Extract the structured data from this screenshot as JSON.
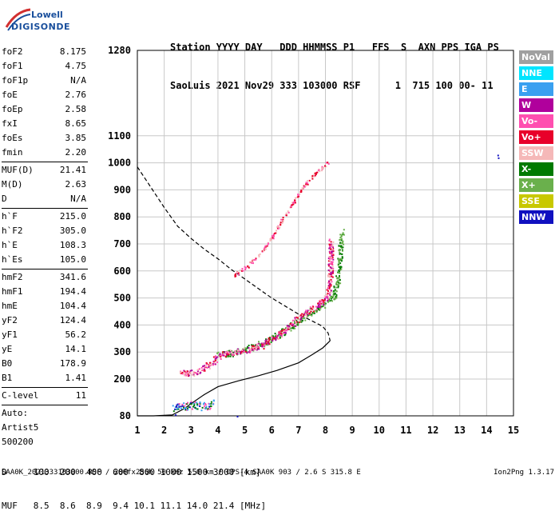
{
  "header": {
    "line1": "Station YYYY DAY   DDD HHMMSS P1   FFS  S  AXN PPS IGA PS",
    "line2": "SaoLuis 2021 Nov29 333 103000 RSF      1  715 100 00- 11"
  },
  "logo": {
    "line1": "Lowell",
    "line2": "DIGISONDE"
  },
  "params": [
    {
      "label": "foF2",
      "value": "8.175"
    },
    {
      "label": "foF1",
      "value": "4.75"
    },
    {
      "label": "foF1p",
      "value": "N/A"
    },
    {
      "label": "foE",
      "value": "2.76"
    },
    {
      "label": "foEp",
      "value": "2.58"
    },
    {
      "label": "fxI",
      "value": "8.65"
    },
    {
      "label": "foEs",
      "value": "3.85"
    },
    {
      "label": "fmin",
      "value": "2.20"
    },
    {
      "sep": true
    },
    {
      "label": "MUF(D)",
      "value": "21.41"
    },
    {
      "label": "M(D)",
      "value": "2.63"
    },
    {
      "label": "D",
      "value": "N/A"
    },
    {
      "sep": true
    },
    {
      "label": "h`F",
      "value": "215.0"
    },
    {
      "label": "h`F2",
      "value": "305.0"
    },
    {
      "label": "h`E",
      "value": "108.3"
    },
    {
      "label": "h`Es",
      "value": "105.0"
    },
    {
      "sep": true
    },
    {
      "label": "hmF2",
      "value": "341.6"
    },
    {
      "label": "hmF1",
      "value": "194.4"
    },
    {
      "label": "hmE",
      "value": "104.4"
    },
    {
      "label": "yF2",
      "value": "124.4"
    },
    {
      "label": "yF1",
      "value": "56.2"
    },
    {
      "label": "yE",
      "value": "14.1"
    },
    {
      "label": "B0",
      "value": "178.9"
    },
    {
      "label": "B1",
      "value": "1.41"
    },
    {
      "sep": true
    },
    {
      "label": "C-level",
      "value": "11"
    },
    {
      "sep": true
    },
    {
      "text": "Auto:"
    },
    {
      "text": "Artist5"
    },
    {
      "text": "500200"
    }
  ],
  "legend": [
    {
      "label": "NoVal",
      "color": "#a0a0a0"
    },
    {
      "label": "NNE",
      "color": "#00e5ff"
    },
    {
      "label": "E",
      "color": "#3aa0f0"
    },
    {
      "label": "W",
      "color": "#b0009c"
    },
    {
      "label": "Vo-",
      "color": "#ff4fb0"
    },
    {
      "label": "Vo+",
      "color": "#e8002a"
    },
    {
      "label": "SSW",
      "color": "#f5b8b8"
    },
    {
      "label": "X-",
      "color": "#007a00"
    },
    {
      "label": "X+",
      "color": "#6ab04c"
    },
    {
      "label": "SSE",
      "color": "#c8c800"
    },
    {
      "label": "NNW",
      "color": "#1010c0"
    }
  ],
  "footer": {
    "line1": "D     100  200  400  600  800 1000 1500 3000 [km]",
    "line2": "MUF   8.5  8.6  8.9  9.4 10.1 11.1 14.0 21.4 [MHz]",
    "bottom": "SAA0K_2021333103000.RSF / 280fx256h 50 kHz 5.0 km / DPS-4 SAA0K 903 / 2.6 S 315.8 E",
    "version": "Ion2Png 1.3.17"
  },
  "chart_data": {
    "type": "scatter",
    "xlim": [
      1,
      15
    ],
    "ylim": [
      80,
      1280
    ],
    "xticks": [
      1,
      2,
      3,
      4,
      5,
      6,
      7,
      8,
      9,
      10,
      11,
      12,
      13,
      14,
      15
    ],
    "yticks": [
      80,
      200,
      300,
      400,
      500,
      600,
      700,
      800,
      900,
      1000,
      1100,
      1280
    ],
    "grid": true,
    "traces": {
      "o_trace": [
        [
          2.55,
          230
        ],
        [
          2.8,
          222
        ],
        [
          3.1,
          225
        ],
        [
          3.4,
          235
        ],
        [
          3.7,
          258
        ],
        [
          3.9,
          275
        ],
        [
          4.1,
          290
        ],
        [
          4.4,
          298
        ],
        [
          4.8,
          305
        ],
        [
          5.2,
          312
        ],
        [
          5.6,
          325
        ],
        [
          5.9,
          345
        ],
        [
          6.3,
          370
        ],
        [
          6.7,
          400
        ],
        [
          7.0,
          430
        ],
        [
          7.3,
          450
        ],
        [
          7.6,
          465
        ],
        [
          7.8,
          480
        ],
        [
          8.0,
          500
        ],
        [
          8.1,
          530
        ],
        [
          8.15,
          560
        ],
        [
          8.17,
          600
        ],
        [
          8.18,
          650
        ],
        [
          8.2,
          720
        ]
      ],
      "x_trace": [
        [
          4.0,
          288
        ],
        [
          4.5,
          298
        ],
        [
          5.0,
          312
        ],
        [
          5.5,
          328
        ],
        [
          6.0,
          350
        ],
        [
          6.4,
          375
        ],
        [
          6.9,
          410
        ],
        [
          7.3,
          440
        ],
        [
          7.7,
          465
        ],
        [
          8.0,
          480
        ],
        [
          8.3,
          510
        ],
        [
          8.45,
          560
        ],
        [
          8.5,
          620
        ],
        [
          8.55,
          700
        ],
        [
          8.6,
          745
        ]
      ],
      "oblique_trace": [
        [
          4.55,
          585
        ],
        [
          4.8,
          600
        ],
        [
          5.1,
          620
        ],
        [
          5.5,
          660
        ],
        [
          5.9,
          710
        ],
        [
          6.2,
          760
        ],
        [
          6.5,
          810
        ],
        [
          6.8,
          860
        ],
        [
          7.1,
          905
        ],
        [
          7.4,
          940
        ],
        [
          7.7,
          970
        ],
        [
          8.0,
          995
        ],
        [
          8.1,
          1005
        ]
      ],
      "e_trace": [
        [
          2.25,
          110
        ],
        [
          2.5,
          108
        ],
        [
          2.8,
          112
        ],
        [
          3.0,
          118
        ],
        [
          3.2,
          115
        ],
        [
          3.5,
          112
        ],
        [
          3.7,
          118
        ],
        [
          3.8,
          125
        ]
      ],
      "profile_solid": [
        [
          1.0,
          80
        ],
        [
          1.6,
          80
        ],
        [
          2.3,
          83
        ],
        [
          2.76,
          104
        ],
        [
          3.0,
          120
        ],
        [
          3.5,
          150
        ],
        [
          4.0,
          175
        ],
        [
          4.75,
          194
        ],
        [
          5.5,
          212
        ],
        [
          6.2,
          232
        ],
        [
          7.0,
          260
        ],
        [
          7.5,
          290
        ],
        [
          7.9,
          315
        ],
        [
          8.175,
          341.6
        ]
      ],
      "profile_dashed": [
        [
          1.0,
          985
        ],
        [
          1.5,
          910
        ],
        [
          2.0,
          835
        ],
        [
          2.5,
          765
        ],
        [
          3.0,
          720
        ],
        [
          3.5,
          680
        ],
        [
          4.0,
          645
        ],
        [
          4.5,
          605
        ],
        [
          5.0,
          570
        ],
        [
          5.5,
          535
        ],
        [
          6.0,
          500
        ],
        [
          6.5,
          470
        ],
        [
          7.0,
          440
        ],
        [
          7.5,
          415
        ],
        [
          7.9,
          395
        ],
        [
          8.1,
          370
        ],
        [
          8.175,
          341.6
        ]
      ],
      "outliers": [
        [
          14.4,
          1030
        ],
        [
          14.42,
          1020
        ],
        [
          4.7,
          80
        ],
        [
          2.4,
          85
        ]
      ]
    },
    "trace_colors": {
      "o_trace": [
        "#ff4fb0",
        "#e8002a",
        "#b0009c",
        "#f5b8b8"
      ],
      "x_trace": [
        "#007a00",
        "#6ab04c"
      ],
      "oblique_trace": [
        "#ff4fb0",
        "#e8002a",
        "#f5b8b8"
      ],
      "e_trace": [
        "#3aa0f0",
        "#1010c0",
        "#007a00",
        "#ff4fb0"
      ]
    }
  }
}
